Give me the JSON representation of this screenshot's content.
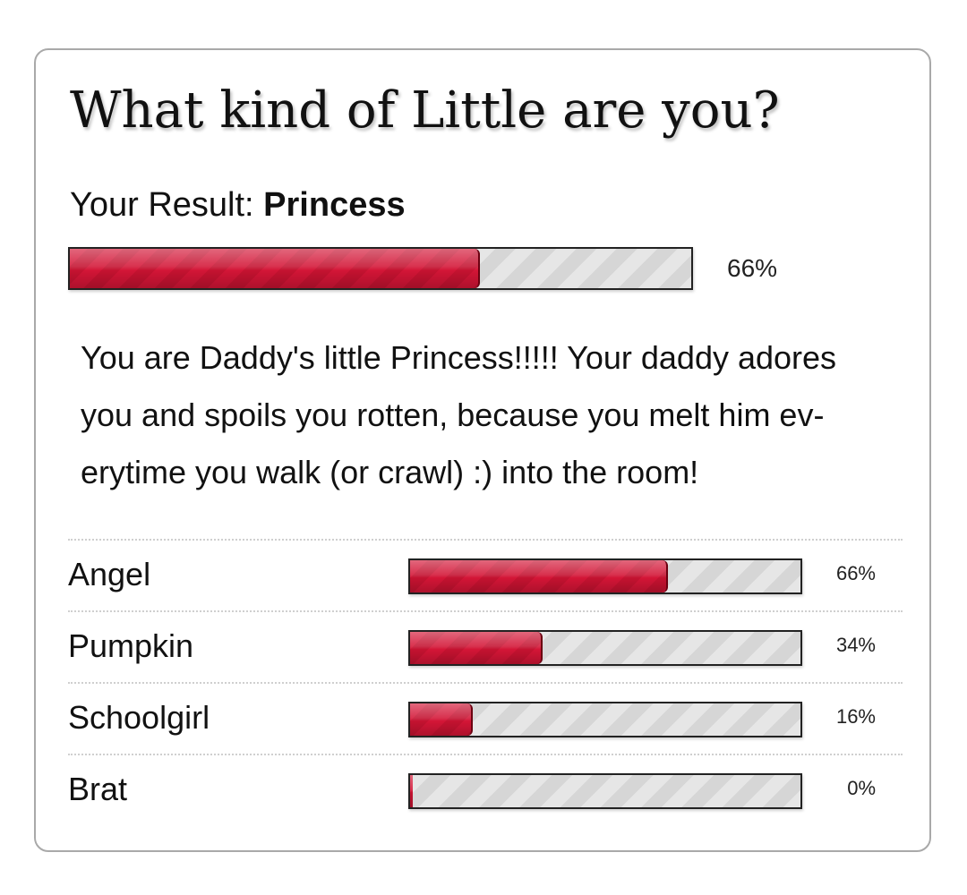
{
  "quiz": {
    "title": "What kind of Little are you?",
    "result_prefix": "Your Result: ",
    "result_name": "Princess",
    "result_percent": 66,
    "result_percent_label": "66%",
    "description": "You are Daddy's little Princess!!!!! Your daddy adores you and spoils you rotten, because you melt him ev-erytime you walk (or crawl) :) into the room!"
  },
  "breakdown": [
    {
      "label": "Angel",
      "percent": 66,
      "percent_label": "66%"
    },
    {
      "label": "Pumpkin",
      "percent": 34,
      "percent_label": "34%"
    },
    {
      "label": "Schoolgirl",
      "percent": 16,
      "percent_label": "16%"
    },
    {
      "label": "Brat",
      "percent": 0,
      "percent_label": "0%"
    }
  ],
  "colors": {
    "bar_fill": "#d8183a",
    "bar_track": "#e6e6e6",
    "card_border": "#a9a9a9"
  }
}
